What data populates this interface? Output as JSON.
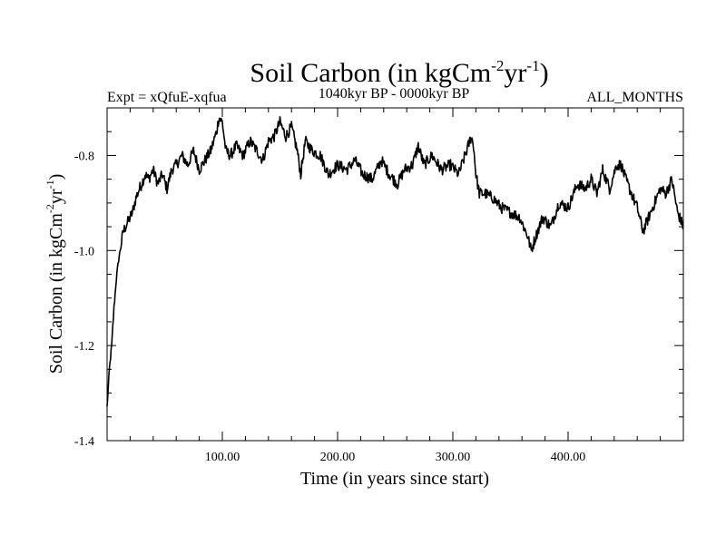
{
  "chart_data": {
    "type": "line",
    "title": "Soil Carbon (in kgCm",
    "title_sup1": "-2",
    "title_mid": "yr",
    "title_sup2": "-1",
    "title_end": ")",
    "subtitle_left": "Expt = xQfuE-xqfua",
    "subtitle_center": "1040kyr BP - 0000kyr BP",
    "subtitle_right": "ALL_MONTHS",
    "xlabel": "Time (in years since start)",
    "ylabel": "Soil Carbon (in kgCm",
    "ylabel_sup1": "-2",
    "ylabel_mid": "yr",
    "ylabel_sup2": "-1",
    "ylabel_end": ")",
    "xlim": [
      0,
      500
    ],
    "ylim": [
      -1.4,
      -0.7
    ],
    "x_ticks": [
      {
        "value": 100,
        "label": "100.00"
      },
      {
        "value": 200,
        "label": "200.00"
      },
      {
        "value": 300,
        "label": "300.00"
      },
      {
        "value": 400,
        "label": "400.00"
      }
    ],
    "y_ticks": [
      {
        "value": -0.8,
        "label": "-0.8"
      },
      {
        "value": -1.0,
        "label": "-1.0"
      },
      {
        "value": -1.2,
        "label": "-1.2"
      },
      {
        "value": -1.4,
        "label": "-1.4"
      }
    ],
    "series": [
      {
        "name": "Soil Carbon",
        "color": "#000000",
        "x": [
          0,
          2,
          4,
          6,
          8,
          10,
          12,
          14,
          16,
          18,
          20,
          22,
          25,
          28,
          30,
          33,
          36,
          40,
          44,
          48,
          52,
          56,
          60,
          65,
          70,
          75,
          80,
          85,
          90,
          95,
          97,
          100,
          103,
          107,
          112,
          118,
          124,
          130,
          135,
          140,
          145,
          150,
          155,
          160,
          165,
          168,
          172,
          178,
          185,
          192,
          200,
          208,
          215,
          222,
          230,
          238,
          245,
          252,
          258,
          265,
          270,
          275,
          282,
          290,
          298,
          305,
          312,
          316,
          318,
          320,
          323,
          328,
          335,
          342,
          350,
          358,
          365,
          368,
          372,
          378,
          385,
          392,
          400,
          408,
          415,
          420,
          425,
          430,
          436,
          442,
          446,
          450,
          455,
          460,
          465,
          470,
          475,
          480,
          485,
          490,
          495,
          500
        ],
        "y": [
          -1.33,
          -1.25,
          -1.2,
          -1.12,
          -1.06,
          -1.02,
          -0.99,
          -0.96,
          -0.95,
          -0.94,
          -0.93,
          -0.92,
          -0.89,
          -0.87,
          -0.86,
          -0.84,
          -0.85,
          -0.83,
          -0.86,
          -0.84,
          -0.87,
          -0.83,
          -0.82,
          -0.8,
          -0.82,
          -0.79,
          -0.83,
          -0.81,
          -0.79,
          -0.75,
          -0.72,
          -0.73,
          -0.79,
          -0.8,
          -0.78,
          -0.8,
          -0.77,
          -0.79,
          -0.81,
          -0.77,
          -0.76,
          -0.73,
          -0.76,
          -0.74,
          -0.79,
          -0.84,
          -0.77,
          -0.79,
          -0.8,
          -0.84,
          -0.82,
          -0.83,
          -0.81,
          -0.84,
          -0.85,
          -0.81,
          -0.84,
          -0.86,
          -0.83,
          -0.82,
          -0.78,
          -0.82,
          -0.8,
          -0.83,
          -0.82,
          -0.84,
          -0.79,
          -0.76,
          -0.78,
          -0.84,
          -0.88,
          -0.88,
          -0.89,
          -0.91,
          -0.92,
          -0.93,
          -0.97,
          -1.0,
          -0.97,
          -0.93,
          -0.95,
          -0.9,
          -0.91,
          -0.86,
          -0.87,
          -0.85,
          -0.88,
          -0.83,
          -0.87,
          -0.82,
          -0.82,
          -0.85,
          -0.88,
          -0.91,
          -0.96,
          -0.93,
          -0.9,
          -0.87,
          -0.88,
          -0.85,
          -0.92,
          -0.95
        ]
      }
    ]
  }
}
